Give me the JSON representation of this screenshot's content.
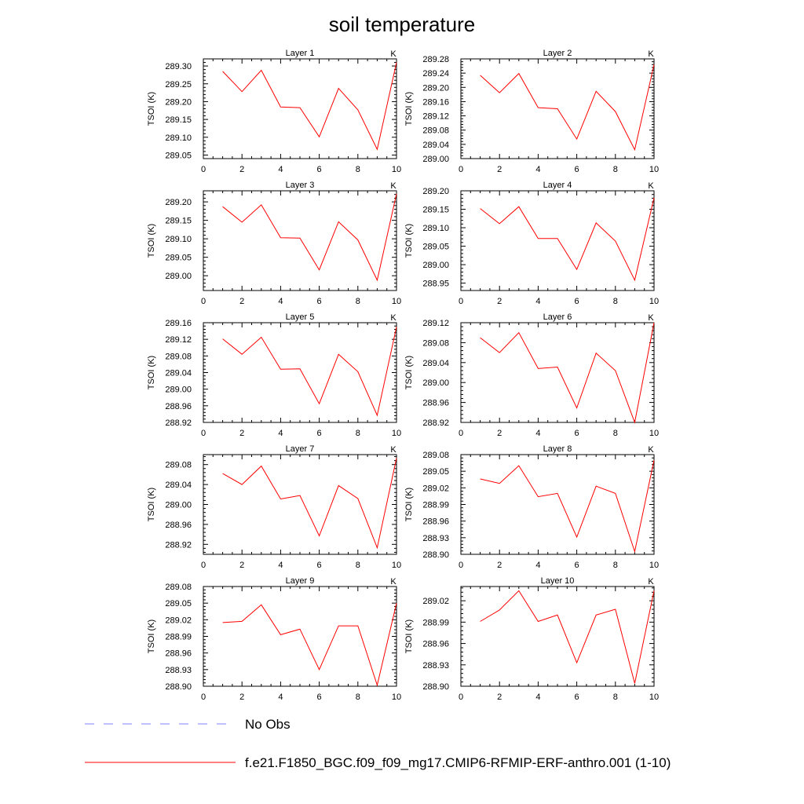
{
  "chart_data": {
    "type": "line",
    "title": "soil temperature",
    "x_ticks": [
      0,
      2,
      4,
      6,
      8,
      10
    ],
    "xlim": [
      0,
      10
    ],
    "legend": [
      {
        "label": "No Obs",
        "color": "#8080ff",
        "dash": true
      },
      {
        "label": "f.e21.F1850_BGC.f09_f09_mg17.CMIP6-RFMIP-ERF-anthro.001 (1-10)",
        "color": "#ff0000",
        "dash": false
      }
    ],
    "series_color": "#ff0000",
    "panels": [
      {
        "title": "Layer 1",
        "unit": "K",
        "ylabel": "TSOI  (K)",
        "ylim": [
          289.04,
          289.32
        ],
        "yticks": [
          "289.05",
          "289.10",
          "289.15",
          "289.20",
          "289.25",
          "289.30"
        ],
        "x": [
          1,
          2,
          3,
          4,
          5,
          6,
          7,
          8,
          9,
          10
        ],
        "y": [
          289.285,
          289.228,
          289.288,
          289.185,
          289.183,
          289.101,
          289.237,
          289.177,
          289.066,
          289.31
        ]
      },
      {
        "title": "Layer 2",
        "unit": "K",
        "ylabel": "TSOI  (K)",
        "ylim": [
          289.0,
          289.28
        ],
        "yticks": [
          "289.00",
          "289.04",
          "289.08",
          "289.12",
          "289.16",
          "289.20",
          "289.24",
          "289.28"
        ],
        "x": [
          1,
          2,
          3,
          4,
          5,
          6,
          7,
          8,
          9,
          10
        ],
        "y": [
          289.234,
          289.185,
          289.239,
          289.143,
          289.14,
          289.055,
          289.189,
          289.132,
          289.025,
          289.264
        ]
      },
      {
        "title": "Layer 3",
        "unit": "K",
        "ylabel": "TSOI  (K)",
        "ylim": [
          288.96,
          289.23
        ],
        "yticks": [
          "289.00",
          "289.05",
          "289.10",
          "289.15",
          "289.20"
        ],
        "x": [
          1,
          2,
          3,
          4,
          5,
          6,
          7,
          8,
          9,
          10
        ],
        "y": [
          289.187,
          289.145,
          289.192,
          289.103,
          289.102,
          289.016,
          289.146,
          289.097,
          288.988,
          289.222
        ]
      },
      {
        "title": "Layer 4",
        "unit": "K",
        "ylabel": "TSOI  (K)",
        "ylim": [
          288.93,
          289.2
        ],
        "yticks": [
          "288.95",
          "289.00",
          "289.05",
          "289.10",
          "289.15",
          "289.20"
        ],
        "x": [
          1,
          2,
          3,
          4,
          5,
          6,
          7,
          8,
          9,
          10
        ],
        "y": [
          289.152,
          289.111,
          289.157,
          289.071,
          289.071,
          288.987,
          289.113,
          289.064,
          288.958,
          289.181
        ]
      },
      {
        "title": "Layer 5",
        "unit": "K",
        "ylabel": "TSOI  (K)",
        "ylim": [
          288.92,
          289.16
        ],
        "yticks": [
          "288.92",
          "288.96",
          "289.00",
          "289.04",
          "289.08",
          "289.12",
          "289.16"
        ],
        "x": [
          1,
          2,
          3,
          4,
          5,
          6,
          7,
          8,
          9,
          10
        ],
        "y": [
          289.121,
          289.084,
          289.125,
          289.048,
          289.049,
          288.965,
          289.084,
          289.042,
          288.937,
          289.15
        ]
      },
      {
        "title": "Layer 6",
        "unit": "K",
        "ylabel": "TSOI  (K)",
        "ylim": [
          288.92,
          289.12
        ],
        "yticks": [
          "288.92",
          "288.96",
          "289.00",
          "289.04",
          "289.08",
          "289.12"
        ],
        "x": [
          1,
          2,
          3,
          4,
          5,
          6,
          7,
          8,
          9,
          10
        ],
        "y": [
          289.09,
          289.06,
          289.1,
          289.028,
          289.031,
          288.949,
          289.059,
          289.024,
          288.92,
          289.12
        ]
      },
      {
        "title": "Layer 7",
        "unit": "K",
        "ylabel": "TSOI  (K)",
        "ylim": [
          288.9,
          289.1
        ],
        "yticks": [
          "288.92",
          "288.96",
          "289.00",
          "289.04",
          "289.08"
        ],
        "x": [
          1,
          2,
          3,
          4,
          5,
          6,
          7,
          8,
          9,
          10
        ],
        "y": [
          289.062,
          289.04,
          289.077,
          289.011,
          289.018,
          288.937,
          289.038,
          289.012,
          288.913,
          289.093
        ]
      },
      {
        "title": "Layer 8",
        "unit": "K",
        "ylabel": "TSOI  (K)",
        "ylim": [
          288.9,
          289.08
        ],
        "yticks": [
          "288.90",
          "288.93",
          "288.96",
          "288.99",
          "289.02",
          "289.05",
          "289.08"
        ],
        "x": [
          1,
          2,
          3,
          4,
          5,
          6,
          7,
          8,
          9,
          10
        ],
        "y": [
          289.036,
          289.028,
          289.06,
          289.004,
          289.01,
          288.931,
          289.023,
          289.01,
          288.905,
          289.07
        ]
      },
      {
        "title": "Layer 9",
        "unit": "K",
        "ylabel": "TSOI  (K)",
        "ylim": [
          288.9,
          289.08
        ],
        "yticks": [
          "288.90",
          "288.93",
          "288.96",
          "288.99",
          "289.02",
          "289.05",
          "289.08"
        ],
        "x": [
          1,
          2,
          3,
          4,
          5,
          6,
          7,
          8,
          9,
          10
        ],
        "y": [
          289.015,
          289.017,
          289.047,
          288.993,
          289.003,
          288.93,
          289.009,
          289.009,
          288.902,
          289.05
        ]
      },
      {
        "title": "Layer 10",
        "unit": "K",
        "ylabel": "TSOI  (K)",
        "ylim": [
          288.9,
          289.04
        ],
        "yticks": [
          "288.90",
          "288.93",
          "288.96",
          "288.99",
          "289.02"
        ],
        "x": [
          1,
          2,
          3,
          4,
          5,
          6,
          7,
          8,
          9,
          10
        ],
        "y": [
          288.991,
          289.007,
          289.034,
          288.991,
          289.0,
          288.933,
          289.0,
          289.008,
          288.904,
          289.034
        ]
      }
    ]
  }
}
